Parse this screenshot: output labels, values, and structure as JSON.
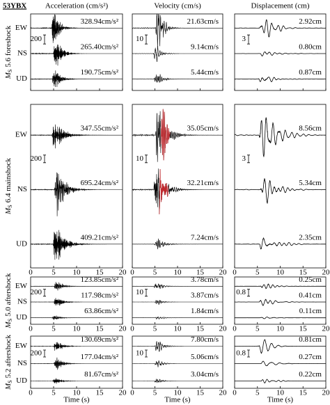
{
  "station": "53YBX",
  "columns": [
    "Acceleration (cm/s²)",
    "Velocity (cm/s)",
    "Displacement (cm)"
  ],
  "events": [
    {
      "magnitude": {
        "symbol": "M",
        "subscript": "S",
        "rest": "5.6 foreshock"
      },
      "scales": [
        200,
        10,
        3
      ],
      "traces": [
        {
          "component": "EW",
          "peaks": [
            328.94,
            21.63,
            2.92
          ],
          "peak_labels": [
            "328.94cm/s²",
            "21.63cm/s",
            "2.92cm"
          ]
        },
        {
          "component": "NS",
          "peaks": [
            265.4,
            9.14,
            0.8
          ],
          "peak_labels": [
            "265.40cm/s²",
            "9.14cm/s",
            "0.80cm"
          ]
        },
        {
          "component": "UD",
          "peaks": [
            190.75,
            5.44,
            0.87
          ],
          "peak_labels": [
            "190.75cm/s²",
            "5.44cm/s",
            "0.87cm"
          ]
        }
      ]
    },
    {
      "magnitude": {
        "symbol": "M",
        "subscript": "S",
        "rest": "6.4 mainshock"
      },
      "scales": [
        200,
        10,
        3
      ],
      "traces": [
        {
          "component": "EW",
          "peaks": [
            347.55,
            35.05,
            8.56
          ],
          "peak_labels": [
            "347.55cm/s²",
            "35.05cm/s",
            "8.56cm"
          ]
        },
        {
          "component": "NS",
          "peaks": [
            695.24,
            32.21,
            5.34
          ],
          "peak_labels": [
            "695.24cm/s²",
            "32.21cm/s",
            "5.34cm"
          ]
        },
        {
          "component": "UD",
          "peaks": [
            409.21,
            7.24,
            2.35
          ],
          "peak_labels": [
            "409.21cm/s²",
            "7.24cm/s",
            "2.35cm"
          ]
        }
      ]
    },
    {
      "magnitude": {
        "symbol": "M",
        "subscript": "S",
        "rest": "5.0 aftershock"
      },
      "scales": [
        200,
        10,
        0.8
      ],
      "traces": [
        {
          "component": "EW",
          "peaks": [
            123.85,
            3.78,
            0.25
          ],
          "peak_labels": [
            "123.85cm/s²",
            "3.78cm/s",
            "0.25cm"
          ]
        },
        {
          "component": "NS",
          "peaks": [
            117.98,
            3.87,
            0.41
          ],
          "peak_labels": [
            "117.98cm/s²",
            "3.87cm/s",
            "0.41cm"
          ]
        },
        {
          "component": "UD",
          "peaks": [
            63.86,
            1.84,
            0.11
          ],
          "peak_labels": [
            "63.86cm/s²",
            "1.84cm/s",
            "0.11cm"
          ]
        }
      ]
    },
    {
      "magnitude": {
        "symbol": "M",
        "subscript": "S",
        "rest": "5.2 aftershock"
      },
      "scales": [
        200,
        10,
        0.8
      ],
      "traces": [
        {
          "component": "EW",
          "peaks": [
            130.69,
            7.8,
            0.81
          ],
          "peak_labels": [
            "130.69cm/s²",
            "7.80cm/s",
            "0.81cm"
          ]
        },
        {
          "component": "NS",
          "peaks": [
            177.04,
            5.06,
            0.27
          ],
          "peak_labels": [
            "177.04cm/s²",
            "5.06cm/s",
            "0.27cm"
          ]
        },
        {
          "component": "UD",
          "peaks": [
            81.67,
            3.04,
            0.22
          ],
          "peak_labels": [
            "81.67cm/s²",
            "3.04cm/s",
            "0.22cm"
          ]
        }
      ]
    }
  ],
  "x_axis": {
    "label": "Time (s)",
    "range": [
      0,
      20
    ],
    "ticks": [
      0,
      5,
      10,
      15,
      20
    ]
  }
}
